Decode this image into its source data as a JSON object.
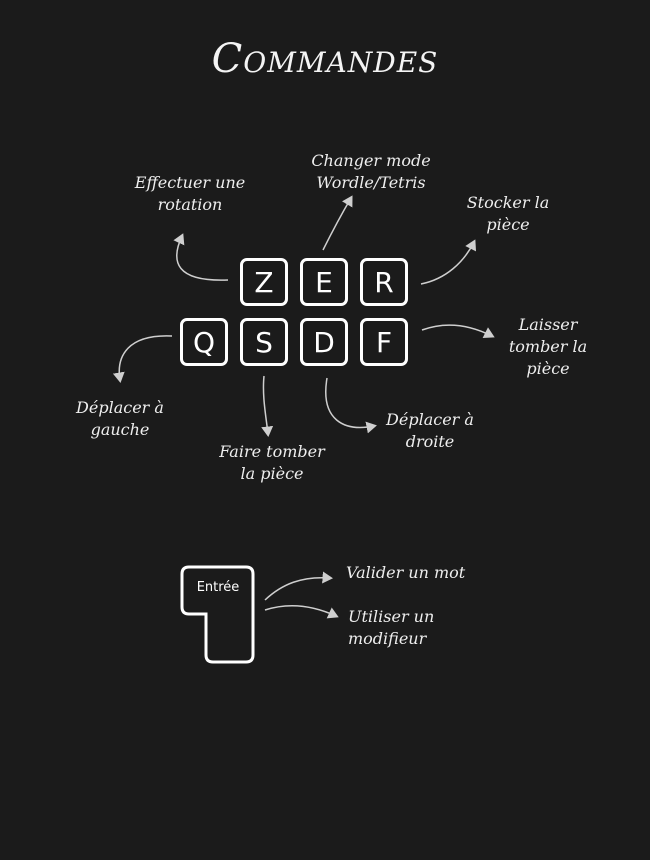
{
  "title": "Commandes",
  "keys": {
    "z": "Z",
    "e": "E",
    "r": "R",
    "q": "Q",
    "s": "S",
    "d": "D",
    "f": "F",
    "enter": "Entrée"
  },
  "labels": {
    "rotate": [
      "Effectuer une",
      "rotation"
    ],
    "switch_mode": [
      "Changer mode",
      "Wordle/Tetris"
    ],
    "store": [
      "Stocker la",
      "pièce"
    ],
    "drop": [
      "Laisser",
      "tomber la",
      "pièce"
    ],
    "move_left": [
      "Déplacer à",
      "gauche"
    ],
    "soft_drop": [
      "Faire tomber",
      "la pièce"
    ],
    "move_right": [
      "Déplacer à",
      "droite"
    ],
    "validate": [
      "Valider un mot"
    ],
    "modifier": [
      "Utiliser un",
      "modifieur"
    ]
  },
  "colors": {
    "background": "#1b1b1b",
    "foreground": "#ffffff",
    "arrow": "#cfcfcf"
  }
}
